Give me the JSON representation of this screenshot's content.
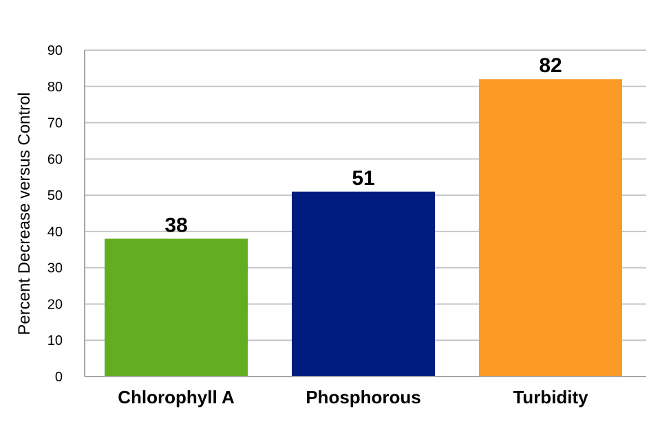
{
  "chart_data": {
    "type": "bar",
    "categories": [
      "Chlorophyll A",
      "Phosphorous",
      "Turbidity"
    ],
    "values": [
      38,
      51,
      82
    ],
    "data_labels": [
      "38",
      "51",
      "82"
    ],
    "colors": [
      "#63ad22",
      "#001c80",
      "#fb9a27"
    ],
    "ylabel": "Percent Decrease versus Control",
    "ylim": [
      0,
      90
    ],
    "yticks": [
      0,
      10,
      20,
      30,
      40,
      50,
      60,
      70,
      80,
      90
    ],
    "ytick_labels": [
      "0",
      "10",
      "20",
      "30",
      "40",
      "50",
      "60",
      "70",
      "80",
      "90"
    ],
    "grid": true,
    "gridline_color": "#c6c6c6",
    "legend": "none"
  }
}
